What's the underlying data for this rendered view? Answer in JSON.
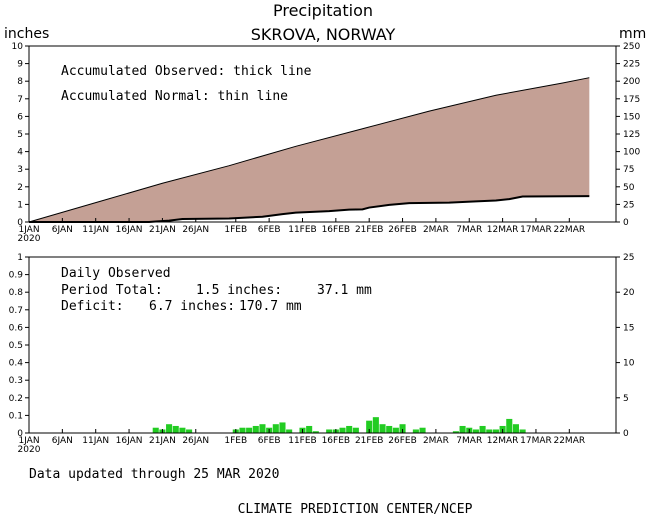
{
  "header": {
    "title": "Precipitation",
    "station": "SKROVA, NORWAY",
    "left_unit": "inches",
    "right_unit": "mm"
  },
  "top_panel": {
    "legend_line1": "Accumulated Observed: thick line",
    "legend_line2": "Accumulated Normal: thin line"
  },
  "bottom_panel": {
    "label": "Daily Observed",
    "period_total_label": "Period Total:",
    "period_total_in": "1.5 inches:",
    "period_total_mm": "37.1 mm",
    "deficit_label": "Deficit:",
    "deficit_in": "6.7 inches:",
    "deficit_mm": "170.7 mm"
  },
  "footer": {
    "updated": "Data updated through 25 MAR 2020",
    "credit": "CLIMATE PREDICTION CENTER/NCEP"
  },
  "colors": {
    "deficit_fill": "#c4a095",
    "bar": "#22cc22",
    "line": "#000000"
  },
  "chart_data": [
    {
      "type": "area",
      "title": "Precipitation",
      "ylabel": "inches",
      "ylabel_right": "mm",
      "ylim": [
        0,
        10
      ],
      "ylim_right": [
        0,
        250
      ],
      "yticks": [
        "0",
        "1",
        "2",
        "3",
        "4",
        "5",
        "6",
        "7",
        "8",
        "9",
        "10"
      ],
      "yticks_right": [
        "0",
        "25",
        "50",
        "75",
        "100",
        "125",
        "150",
        "175",
        "200",
        "225",
        "250"
      ],
      "xlim": [
        "1 JAN 2020",
        "29 MAR 2020"
      ],
      "xticks": [
        "1JAN",
        "6JAN",
        "11JAN",
        "16JAN",
        "21JAN",
        "26JAN",
        "1FEB",
        "6FEB",
        "11FEB",
        "16FEB",
        "21FEB",
        "26FEB",
        "2MAR",
        "7MAR",
        "12MAR",
        "17MAR",
        "22MAR"
      ],
      "xtick_year": "2020",
      "series": [
        {
          "name": "Accumulated Normal",
          "x": [
            "1 JAN",
            "11 JAN",
            "21 JAN",
            "31 JAN",
            "10 FEB",
            "20 FEB",
            "1 MAR",
            "11 MAR",
            "21 MAR",
            "25 MAR"
          ],
          "values": [
            0.0,
            1.1,
            2.2,
            3.2,
            4.3,
            5.3,
            6.3,
            7.2,
            7.9,
            8.2
          ]
        },
        {
          "name": "Accumulated Observed",
          "x": [
            "1 JAN",
            "19 JAN",
            "20 JAN",
            "22 JAN",
            "24 JAN",
            "31 JAN",
            "5 FEB",
            "8 FEB",
            "10 FEB",
            "15 FEB",
            "18 FEB",
            "20 FEB",
            "21 FEB",
            "24 FEB",
            "27 FEB",
            "4 MAR",
            "8 MAR",
            "11 MAR",
            "13 MAR",
            "15 MAR",
            "25 MAR"
          ],
          "values": [
            0.0,
            0.0,
            0.03,
            0.08,
            0.17,
            0.2,
            0.3,
            0.45,
            0.53,
            0.62,
            0.7,
            0.72,
            0.82,
            0.97,
            1.07,
            1.1,
            1.17,
            1.22,
            1.3,
            1.45,
            1.47
          ]
        }
      ]
    },
    {
      "type": "bar",
      "title": "Daily Observed",
      "ylabel": "inches",
      "ylabel_right": "mm",
      "ylim": [
        0,
        1
      ],
      "ylim_right": [
        0,
        25
      ],
      "yticks": [
        "0",
        "0.1",
        "0.2",
        "0.3",
        "0.4",
        "0.5",
        "0.6",
        "0.7",
        "0.8",
        "0.9",
        "1"
      ],
      "yticks_right": [
        "0",
        "5",
        "10",
        "15",
        "20",
        "25"
      ],
      "xticks": [
        "1JAN",
        "6JAN",
        "11JAN",
        "16JAN",
        "21JAN",
        "26JAN",
        "1FEB",
        "6FEB",
        "11FEB",
        "16FEB",
        "21FEB",
        "26FEB",
        "2MAR",
        "7MAR",
        "12MAR",
        "17MAR",
        "22MAR"
      ],
      "xtick_year": "2020",
      "x": [
        "20 JAN",
        "21 JAN",
        "22 JAN",
        "23 JAN",
        "24 JAN",
        "25 JAN",
        "1 FEB",
        "2 FEB",
        "3 FEB",
        "4 FEB",
        "5 FEB",
        "6 FEB",
        "7 FEB",
        "8 FEB",
        "9 FEB",
        "11 FEB",
        "12 FEB",
        "13 FEB",
        "15 FEB",
        "16 FEB",
        "17 FEB",
        "18 FEB",
        "19 FEB",
        "21 FEB",
        "22 FEB",
        "23 FEB",
        "24 FEB",
        "25 FEB",
        "26 FEB",
        "28 FEB",
        "29 FEB",
        "5 MAR",
        "6 MAR",
        "7 MAR",
        "8 MAR",
        "9 MAR",
        "10 MAR",
        "11 MAR",
        "12 MAR",
        "13 MAR",
        "14 MAR",
        "15 MAR"
      ],
      "values": [
        0.03,
        0.02,
        0.05,
        0.04,
        0.03,
        0.02,
        0.02,
        0.03,
        0.03,
        0.04,
        0.05,
        0.03,
        0.05,
        0.06,
        0.02,
        0.03,
        0.04,
        0.01,
        0.02,
        0.02,
        0.03,
        0.04,
        0.03,
        0.07,
        0.09,
        0.05,
        0.04,
        0.03,
        0.05,
        0.02,
        0.03,
        0.01,
        0.04,
        0.03,
        0.02,
        0.04,
        0.02,
        0.02,
        0.04,
        0.08,
        0.05,
        0.02
      ]
    }
  ]
}
